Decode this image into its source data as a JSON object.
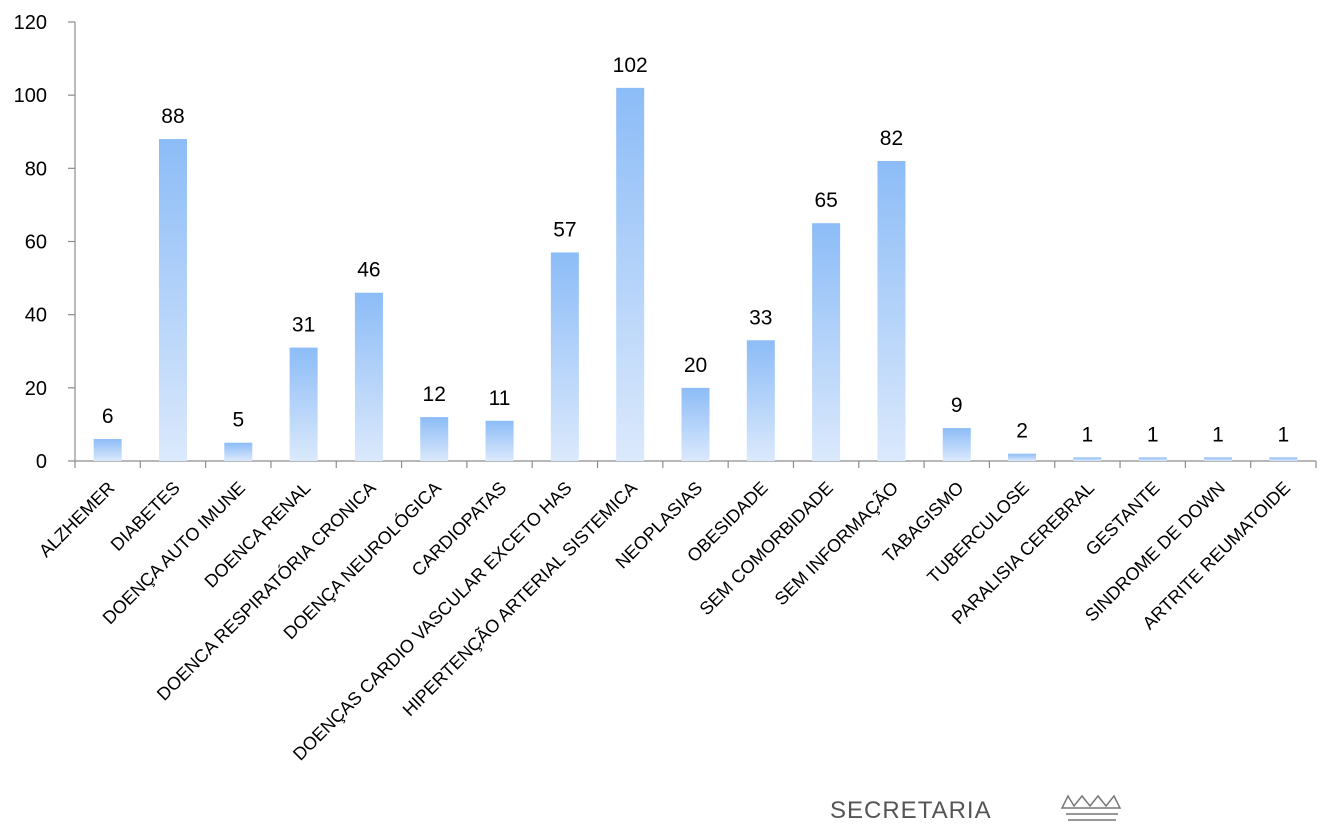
{
  "chart_data": {
    "type": "bar",
    "categories": [
      "ALZHEMER",
      "DIABETES",
      "DOENÇA AUTO IMUNE",
      "DOENCA RENAL",
      "DOENCA RESPIRATÓRIA CRONICA",
      "DOENÇA NEUROLÓGICA",
      "CARDIOPATAS",
      "DOENÇAS CARDIO VASCULAR EXCETO HAS",
      "HIPERTENÇÃO ARTERIAL SISTEMICA",
      "NEOPLASIAS",
      "OBESIDADE",
      "SEM COMORBIDADE",
      "SEM INFORMAÇÃO",
      "TABAGISMO",
      "TUBERCULOSE",
      "PARALISIA CEREBRAL",
      "GESTANTE",
      "SINDROME DE DOWN",
      "ARTRITE REUMATOIDE"
    ],
    "values": [
      6,
      88,
      5,
      31,
      46,
      12,
      11,
      57,
      102,
      20,
      33,
      65,
      82,
      9,
      2,
      1,
      1,
      1,
      1
    ],
    "data_labels": [
      "6",
      "88",
      "5",
      "31",
      "46",
      "12",
      "11",
      "57",
      "102",
      "20",
      "33",
      "65",
      "82",
      "9",
      "2",
      "1",
      "1",
      "1",
      "1"
    ],
    "ylim": [
      0,
      120
    ],
    "yticks": [
      0,
      20,
      40,
      60,
      80,
      100,
      120
    ],
    "ytick_labels": [
      "0",
      "20",
      "40",
      "60",
      "80",
      "100",
      "120"
    ],
    "grid": false,
    "legend": "none",
    "colors": {
      "bar_top": "#8cbcf7",
      "bar_bottom": "#dbe9fc",
      "axis": "#8c8c8c"
    }
  },
  "footer": {
    "logo_text": "SECRETARIA",
    "crown_icon": "crown-icon"
  }
}
